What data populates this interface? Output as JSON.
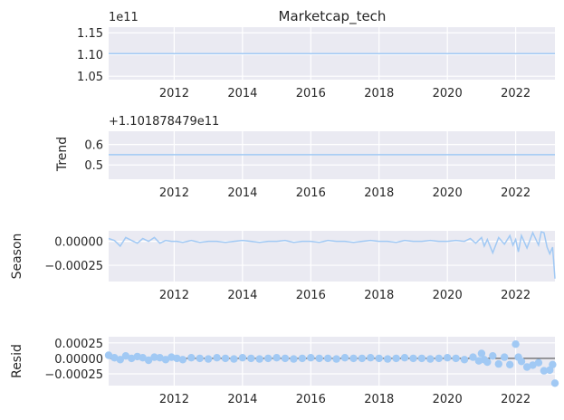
{
  "chart_data": [
    {
      "type": "line",
      "title": "Marketcap_tech",
      "ylabel": "",
      "offset_text": "1e11",
      "yticks": [
        "1.05",
        "1.10",
        "1.15"
      ],
      "ytick_values": [
        1.05,
        1.1,
        1.15
      ],
      "ylim": [
        1.042,
        1.163
      ],
      "xticks": [
        "2012",
        "2014",
        "2016",
        "2018",
        "2020",
        "2022"
      ],
      "xlim": [
        2010.08,
        2023.15
      ],
      "series": [
        {
          "x": [
            2010.08,
            2023.15
          ],
          "values": [
            1.1019,
            1.1019
          ]
        }
      ]
    },
    {
      "type": "line",
      "ylabel": "Trend",
      "offset_text": "+1.101878479e11",
      "yticks": [
        "0.5",
        "0.6"
      ],
      "ytick_values": [
        0.5,
        0.6
      ],
      "ylim": [
        0.43,
        0.665
      ],
      "xticks": [
        "2012",
        "2014",
        "2016",
        "2018",
        "2020",
        "2022"
      ],
      "xlim": [
        2010.08,
        2023.15
      ],
      "series": [
        {
          "x": [
            2010.08,
            2023.15
          ],
          "values": [
            0.55,
            0.55
          ]
        }
      ]
    },
    {
      "type": "line",
      "ylabel": "Season",
      "yticks": [
        "0.00000",
        "−0.00025"
      ],
      "ytick_values": [
        0.0,
        -0.00025
      ],
      "ylim": [
        -0.00042,
        0.00011
      ],
      "xticks": [
        "2012",
        "2014",
        "2016",
        "2018",
        "2020",
        "2022"
      ],
      "xlim": [
        2010.08,
        2023.15
      ],
      "series": [
        {
          "x": [
            2010.08,
            2010.25,
            2010.42,
            2010.58,
            2010.75,
            2010.92,
            2011.08,
            2011.25,
            2011.42,
            2011.58,
            2011.75,
            2011.92,
            2012.08,
            2012.25,
            2012.5,
            2012.75,
            2013.0,
            2013.25,
            2013.5,
            2013.75,
            2014.0,
            2014.25,
            2014.5,
            2014.75,
            2015.0,
            2015.25,
            2015.5,
            2015.75,
            2016.0,
            2016.25,
            2016.5,
            2016.75,
            2017.0,
            2017.25,
            2017.5,
            2017.75,
            2018.0,
            2018.25,
            2018.5,
            2018.75,
            2019.0,
            2019.25,
            2019.5,
            2019.75,
            2020.0,
            2020.25,
            2020.5,
            2020.67,
            2020.83,
            2021.0,
            2021.08,
            2021.17,
            2021.33,
            2021.5,
            2021.67,
            2021.83,
            2021.92,
            2022.0,
            2022.08,
            2022.17,
            2022.33,
            2022.5,
            2022.67,
            2022.75,
            2022.83,
            2022.92,
            2023.0,
            2023.08,
            2023.15
          ],
          "values": [
            3e-05,
            1e-05,
            -5e-05,
            4e-05,
            1e-05,
            -2e-05,
            3e-05,
            0.0,
            4e-05,
            -2e-05,
            1e-05,
            0.0,
            0.0,
            -1e-05,
            1e-05,
            -1e-05,
            0.0,
            0.0,
            -1e-05,
            0.0,
            1e-05,
            0.0,
            -1e-05,
            0.0,
            0.0,
            1e-05,
            -1e-05,
            0.0,
            0.0,
            -1e-05,
            1e-05,
            0.0,
            0.0,
            -1e-05,
            0.0,
            1e-05,
            0.0,
            0.0,
            -1e-05,
            1e-05,
            0.0,
            0.0,
            1e-05,
            0.0,
            0.0,
            1e-05,
            0.0,
            3e-05,
            -2e-05,
            4e-05,
            -5e-05,
            2e-05,
            -0.00012,
            4e-05,
            -3e-05,
            6e-05,
            -4e-05,
            2e-05,
            -0.00011,
            6e-05,
            -7e-05,
            9e-05,
            -4e-05,
            0.0001,
            9e-05,
            -6e-05,
            -0.00013,
            -6e-05,
            -0.00039
          ]
        }
      ]
    },
    {
      "type": "scatter",
      "ylabel": "Resid",
      "yticks": [
        "0.00025",
        "0.00000",
        "−0.00025"
      ],
      "ytick_values": [
        0.00025,
        0.0,
        -0.00025
      ],
      "ylim": [
        -0.00044,
        0.00035
      ],
      "xticks": [
        "2012",
        "2014",
        "2016",
        "2018",
        "2020",
        "2022"
      ],
      "xlim": [
        2010.08,
        2023.15
      ],
      "baseline": 0,
      "series": [
        {
          "x": [
            2010.08,
            2010.25,
            2010.42,
            2010.58,
            2010.75,
            2010.92,
            2011.08,
            2011.25,
            2011.42,
            2011.58,
            2011.75,
            2011.92,
            2012.08,
            2012.25,
            2012.5,
            2012.75,
            2013.0,
            2013.25,
            2013.5,
            2013.75,
            2014.0,
            2014.25,
            2014.5,
            2014.75,
            2015.0,
            2015.25,
            2015.5,
            2015.75,
            2016.0,
            2016.25,
            2016.5,
            2016.75,
            2017.0,
            2017.25,
            2017.5,
            2017.75,
            2018.0,
            2018.25,
            2018.5,
            2018.75,
            2019.0,
            2019.25,
            2019.5,
            2019.75,
            2020.0,
            2020.25,
            2020.5,
            2020.75,
            2020.92,
            2021.0,
            2021.08,
            2021.17,
            2021.33,
            2021.5,
            2021.67,
            2021.83,
            2022.0,
            2022.08,
            2022.17,
            2022.33,
            2022.5,
            2022.67,
            2022.83,
            2023.0,
            2023.08,
            2023.15
          ],
          "values": [
            5e-05,
            1e-05,
            -2e-05,
            4e-05,
            0.0,
            3e-05,
            1e-05,
            -3e-05,
            2e-05,
            1e-05,
            -2e-05,
            2e-05,
            0.0,
            -2e-05,
            1e-05,
            0.0,
            -1e-05,
            1e-05,
            0.0,
            -1e-05,
            1e-05,
            0.0,
            -1e-05,
            0.0,
            1e-05,
            0.0,
            -1e-05,
            0.0,
            1e-05,
            0.0,
            0.0,
            -1e-05,
            1e-05,
            0.0,
            0.0,
            1e-05,
            0.0,
            -1e-05,
            0.0,
            1e-05,
            0.0,
            0.0,
            -1e-05,
            0.0,
            1e-05,
            0.0,
            -2e-05,
            2e-05,
            -4e-05,
            8e-05,
            -2e-05,
            -6e-05,
            4e-05,
            -9e-05,
            2e-05,
            -0.0001,
            0.00023,
            2e-05,
            -5e-05,
            -0.00014,
            -0.00011,
            -7e-05,
            -0.0002,
            -0.00019,
            -0.0001,
            -0.0004
          ]
        }
      ]
    }
  ]
}
